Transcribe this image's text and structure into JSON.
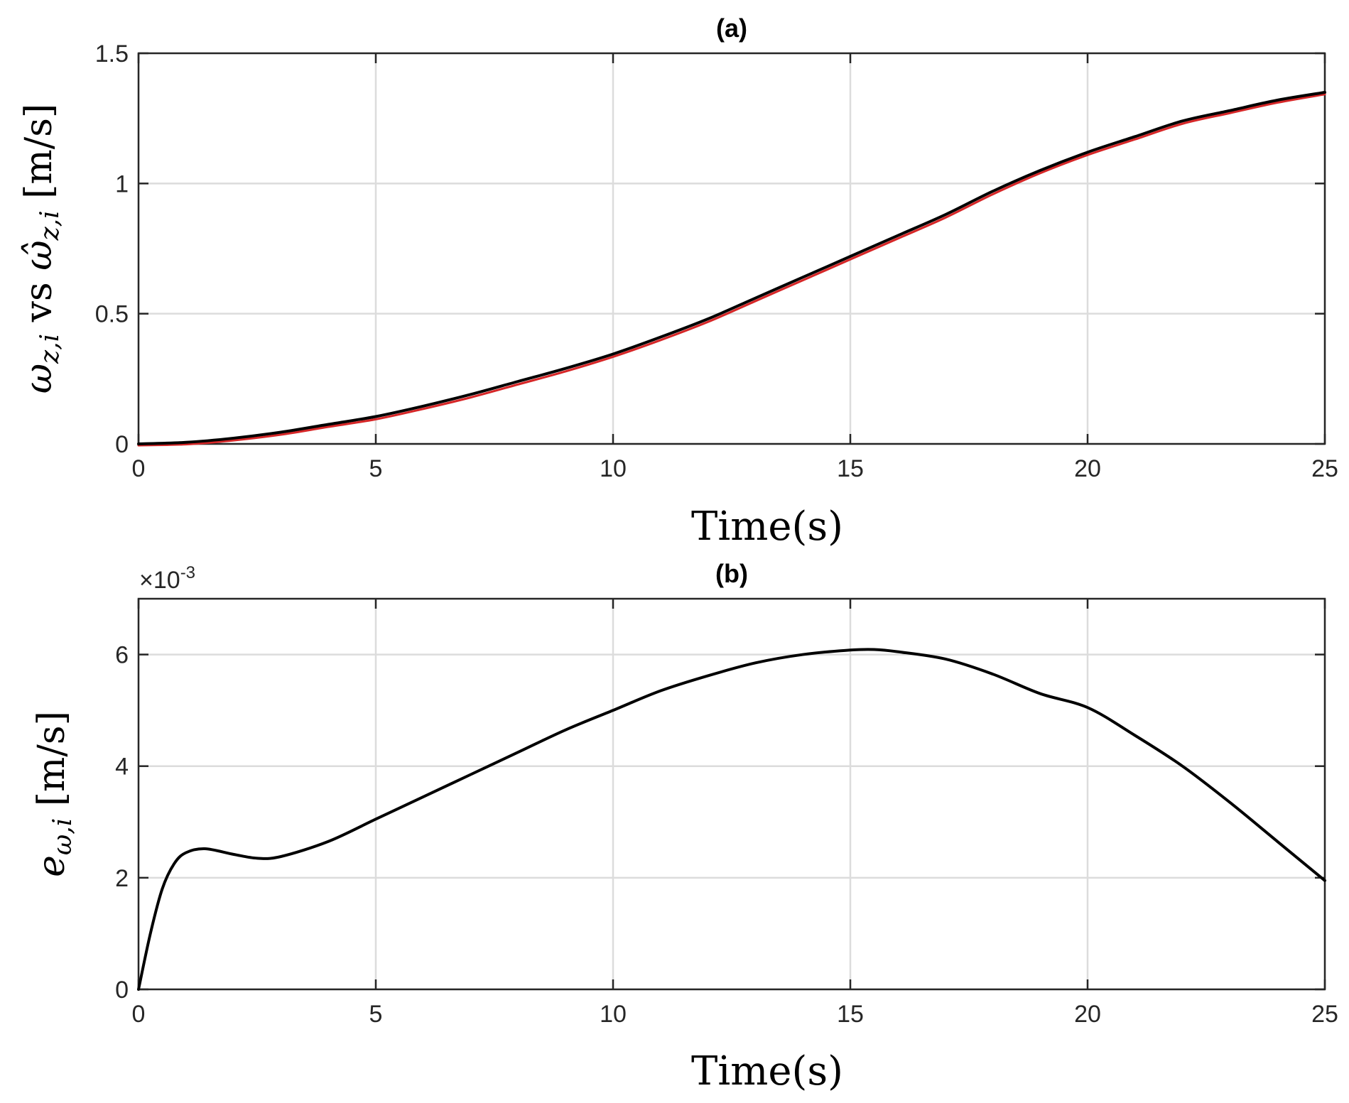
{
  "chart_data": [
    {
      "type": "line",
      "title": "(a)",
      "xlabel": "Time(s)",
      "ylabel": "ω_{z,i} vs ω̂_{z,i} [m/s]",
      "ylabel_parts": {
        "sym1": "ω",
        "sub1": "z,i",
        "mid": " vs ",
        "sym2": "ω̂",
        "sub2": "z,i",
        "unit": " [m/s]"
      },
      "xlim": [
        0,
        25
      ],
      "ylim": [
        0,
        1.5
      ],
      "xticks": [
        0,
        5,
        10,
        15,
        20,
        25
      ],
      "yticks": [
        0,
        0.5,
        1,
        1.5
      ],
      "xtick_labels": [
        "0",
        "5",
        "10",
        "15",
        "20",
        "25"
      ],
      "ytick_labels": [
        "0",
        "0.5",
        "1",
        "1.5"
      ],
      "grid": true,
      "series": [
        {
          "color": "#000000",
          "x": [
            0,
            1,
            2,
            3,
            4,
            5,
            6,
            7,
            8,
            9,
            10,
            11,
            12,
            13,
            14,
            15,
            16,
            17,
            18,
            19,
            20,
            21,
            22,
            23,
            24,
            25
          ],
          "values": [
            0.0,
            0.006,
            0.022,
            0.045,
            0.075,
            0.105,
            0.145,
            0.19,
            0.24,
            0.29,
            0.345,
            0.41,
            0.48,
            0.56,
            0.64,
            0.72,
            0.8,
            0.88,
            0.97,
            1.05,
            1.12,
            1.18,
            1.24,
            1.28,
            1.32,
            1.35
          ]
        },
        {
          "color": "#d62728",
          "x": [
            0,
            1,
            2,
            3,
            4,
            5,
            6,
            7,
            8,
            9,
            10,
            11,
            12,
            13,
            14,
            15,
            16,
            17,
            18,
            19,
            20,
            21,
            22,
            23,
            24,
            25
          ],
          "values": [
            0.0,
            0.004,
            0.019,
            0.041,
            0.071,
            0.1,
            0.14,
            0.184,
            0.234,
            0.284,
            0.34,
            0.404,
            0.474,
            0.554,
            0.634,
            0.714,
            0.794,
            0.874,
            0.964,
            1.045,
            1.115,
            1.175,
            1.235,
            1.276,
            1.316,
            1.348
          ]
        }
      ]
    },
    {
      "type": "line",
      "title": "(b)",
      "xlabel": "Time(s)",
      "ylabel": "e_{ω,i} [m/s]",
      "ylabel_parts": {
        "sym1": "e",
        "sub1": "ω,i",
        "unit": " [m/s]"
      },
      "exponent_label": "×10",
      "exponent_power": "-3",
      "xlim": [
        0,
        25
      ],
      "ylim": [
        0,
        7
      ],
      "xticks": [
        0,
        5,
        10,
        15,
        20,
        25
      ],
      "yticks": [
        0,
        2,
        4,
        6
      ],
      "xtick_labels": [
        "0",
        "5",
        "10",
        "15",
        "20",
        "25"
      ],
      "ytick_labels": [
        "0",
        "2",
        "4",
        "6"
      ],
      "grid": true,
      "series": [
        {
          "color": "#000000",
          "x": [
            0,
            0.25,
            0.5,
            0.75,
            1,
            1.4,
            2,
            2.5,
            3,
            4,
            5,
            6,
            7,
            8,
            9,
            10,
            11,
            12,
            13,
            14,
            15,
            15.5,
            16,
            17,
            18,
            19,
            20,
            21,
            22,
            23,
            24,
            25
          ],
          "values": [
            0.0,
            1.0,
            1.8,
            2.25,
            2.45,
            2.52,
            2.42,
            2.35,
            2.38,
            2.65,
            3.05,
            3.45,
            3.85,
            4.25,
            4.65,
            5.0,
            5.35,
            5.62,
            5.85,
            6.0,
            6.08,
            6.09,
            6.05,
            5.92,
            5.65,
            5.3,
            5.05,
            4.55,
            4.0,
            3.35,
            2.65,
            1.95
          ]
        }
      ]
    }
  ]
}
